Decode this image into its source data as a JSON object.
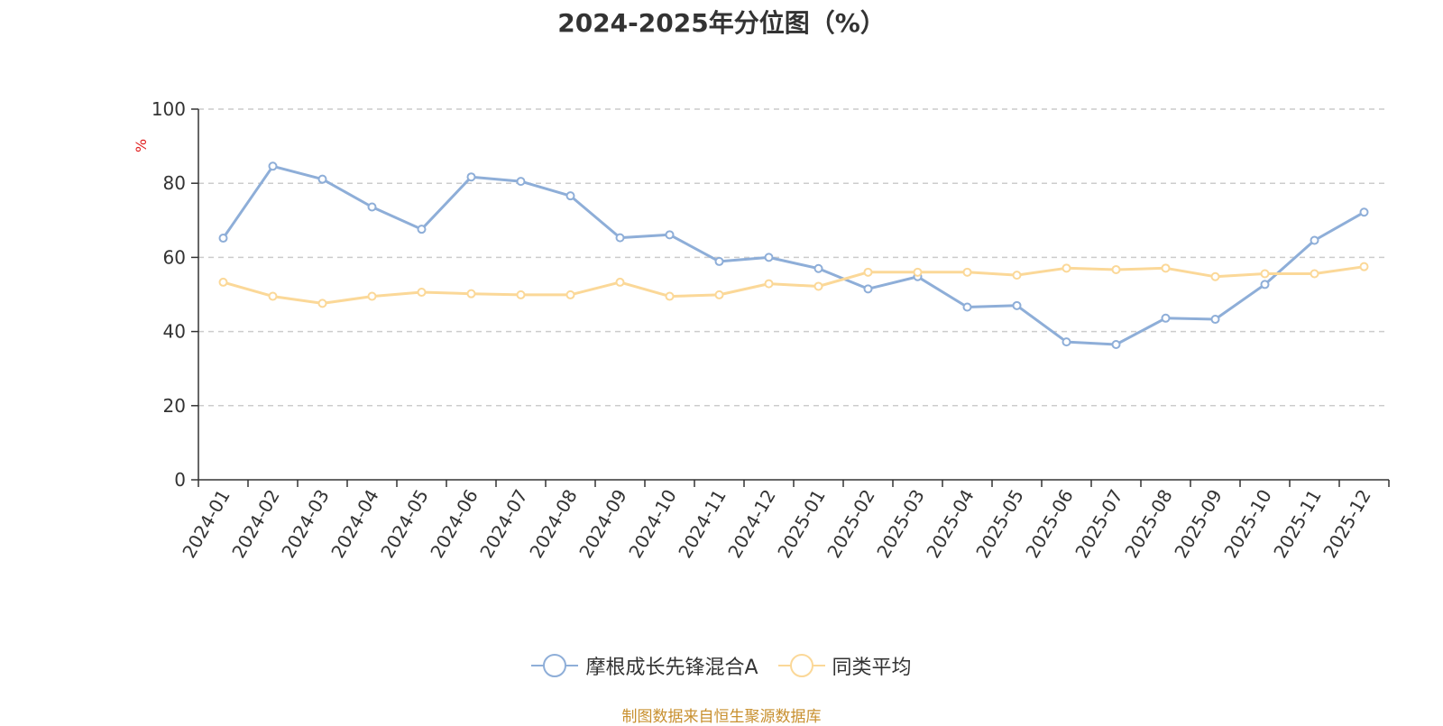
{
  "chart_data": {
    "type": "line",
    "title": "2024-2025年分位图（%）",
    "ylabel": "%",
    "ylim": [
      0,
      100
    ],
    "yticks": [
      0,
      20,
      40,
      60,
      80,
      100
    ],
    "grid": true,
    "legend_position": "bottom",
    "categories": [
      "2024-01",
      "2024-02",
      "2024-03",
      "2024-04",
      "2024-05",
      "2024-06",
      "2024-07",
      "2024-08",
      "2024-09",
      "2024-10",
      "2024-11",
      "2024-12",
      "2025-01",
      "2025-02",
      "2025-03",
      "2025-04",
      "2025-05",
      "2025-06",
      "2025-07",
      "2025-08",
      "2025-09",
      "2025-10",
      "2025-11",
      "2025-12"
    ],
    "series": [
      {
        "name": "摩根成长先锋混合A",
        "color": "#8eaed8",
        "values": [
          65.2,
          84.6,
          81.1,
          73.6,
          67.6,
          81.7,
          80.5,
          76.6,
          65.3,
          66.1,
          58.9,
          60.0,
          57.0,
          51.5,
          54.8,
          46.6,
          47.0,
          37.2,
          36.5,
          43.6,
          43.3,
          52.7,
          64.6,
          72.2
        ]
      },
      {
        "name": "同类平均",
        "color": "#fbd898",
        "values": [
          53.3,
          49.5,
          47.6,
          49.5,
          50.6,
          50.2,
          49.9,
          49.9,
          53.3,
          49.5,
          49.9,
          52.9,
          52.2,
          56.0,
          56.0,
          56.0,
          55.2,
          57.1,
          56.7,
          57.1,
          54.8,
          55.6,
          55.6,
          57.5
        ]
      }
    ]
  },
  "source": "制图数据来自恒生聚源数据库"
}
